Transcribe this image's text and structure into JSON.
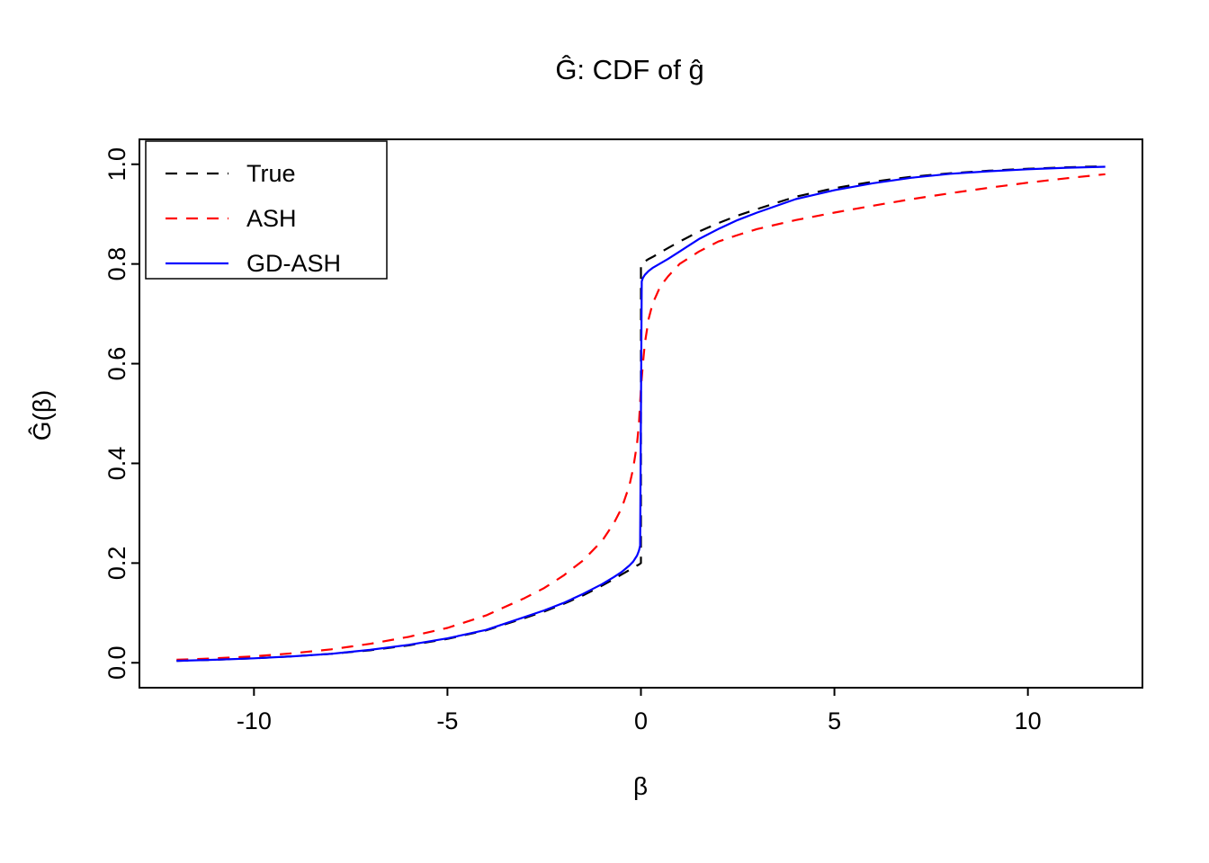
{
  "chart_data": {
    "type": "line",
    "title": "Ĝ: CDF of ĝ",
    "xlabel": "β",
    "ylabel": "Ĝ(β)",
    "xlim": [
      -12.96,
      12.96
    ],
    "ylim": [
      -0.05,
      1.05
    ],
    "grid": false,
    "xticks": [
      {
        "value": -10,
        "label": "-10"
      },
      {
        "value": -5,
        "label": "-5"
      },
      {
        "value": 0,
        "label": "0"
      },
      {
        "value": 5,
        "label": "5"
      },
      {
        "value": 10,
        "label": "10"
      }
    ],
    "yticks": [
      {
        "value": 0.0,
        "label": "0.0"
      },
      {
        "value": 0.2,
        "label": "0.2"
      },
      {
        "value": 0.4,
        "label": "0.4"
      },
      {
        "value": 0.6,
        "label": "0.6"
      },
      {
        "value": 0.8,
        "label": "0.8"
      },
      {
        "value": 1.0,
        "label": "1.0"
      }
    ],
    "legend": {
      "position": "top-left",
      "entries": [
        {
          "label": "True",
          "color": "#000000",
          "dashed": true
        },
        {
          "label": "ASH",
          "color": "#FF0000",
          "dashed": true
        },
        {
          "label": "GD-ASH",
          "color": "#0000FF",
          "dashed": false
        }
      ]
    },
    "series": [
      {
        "name": "True",
        "color": "#000000",
        "dashed": true,
        "x": [
          -12,
          -11,
          -10,
          -9,
          -8,
          -7,
          -6,
          -5,
          -4,
          -3,
          -2.5,
          -2,
          -1.5,
          -1,
          -0.7,
          -0.5,
          -0.3,
          -0.2,
          -0.1,
          -0.05,
          0,
          0,
          0.05,
          0.1,
          0.2,
          0.3,
          0.5,
          0.7,
          1,
          1.5,
          2,
          2.5,
          3,
          4,
          5,
          6,
          7,
          8,
          9,
          10,
          11,
          12
        ],
        "y": [
          0.004,
          0.006,
          0.009,
          0.013,
          0.018,
          0.025,
          0.035,
          0.048,
          0.065,
          0.09,
          0.103,
          0.118,
          0.135,
          0.155,
          0.168,
          0.177,
          0.186,
          0.19,
          0.195,
          0.197,
          0.2,
          0.8,
          0.803,
          0.805,
          0.81,
          0.814,
          0.823,
          0.832,
          0.845,
          0.865,
          0.882,
          0.897,
          0.91,
          0.935,
          0.952,
          0.965,
          0.975,
          0.982,
          0.987,
          0.991,
          0.994,
          0.996
        ]
      },
      {
        "name": "ASH",
        "color": "#FF0000",
        "dashed": true,
        "x": [
          -12,
          -11,
          -10,
          -9,
          -8,
          -7,
          -6,
          -5,
          -4,
          -3,
          -2.5,
          -2,
          -1.5,
          -1,
          -0.7,
          -0.5,
          -0.3,
          -0.2,
          -0.1,
          -0.05,
          0,
          0.05,
          0.1,
          0.2,
          0.3,
          0.5,
          0.7,
          1,
          1.5,
          2,
          2.5,
          3,
          4,
          5,
          6,
          7,
          8,
          9,
          10,
          11,
          12
        ],
        "y": [
          0.006,
          0.009,
          0.013,
          0.019,
          0.027,
          0.038,
          0.052,
          0.07,
          0.095,
          0.13,
          0.15,
          0.175,
          0.205,
          0.245,
          0.28,
          0.31,
          0.355,
          0.39,
          0.44,
          0.48,
          0.55,
          0.6,
          0.64,
          0.69,
          0.72,
          0.755,
          0.775,
          0.8,
          0.825,
          0.845,
          0.858,
          0.87,
          0.888,
          0.903,
          0.917,
          0.93,
          0.942,
          0.953,
          0.963,
          0.972,
          0.98
        ]
      },
      {
        "name": "GD-ASH",
        "color": "#0000FF",
        "dashed": false,
        "x": [
          -12,
          -11,
          -10,
          -9,
          -8,
          -7,
          -6,
          -5,
          -4,
          -3,
          -2.5,
          -2,
          -1.5,
          -1,
          -0.7,
          -0.5,
          -0.3,
          -0.2,
          -0.1,
          -0.05,
          -0.02,
          0,
          0.02,
          0.05,
          0.1,
          0.2,
          0.3,
          0.5,
          0.7,
          1,
          1.5,
          2,
          2.5,
          3,
          4,
          5,
          6,
          7,
          8,
          9,
          10,
          11,
          12
        ],
        "y": [
          0.004,
          0.006,
          0.009,
          0.013,
          0.018,
          0.026,
          0.036,
          0.049,
          0.066,
          0.092,
          0.105,
          0.12,
          0.138,
          0.158,
          0.172,
          0.182,
          0.195,
          0.203,
          0.215,
          0.225,
          0.235,
          0.5,
          0.765,
          0.772,
          0.778,
          0.786,
          0.792,
          0.801,
          0.81,
          0.825,
          0.85,
          0.87,
          0.888,
          0.903,
          0.93,
          0.948,
          0.962,
          0.973,
          0.981,
          0.986,
          0.99,
          0.993,
          0.995
        ]
      }
    ]
  }
}
